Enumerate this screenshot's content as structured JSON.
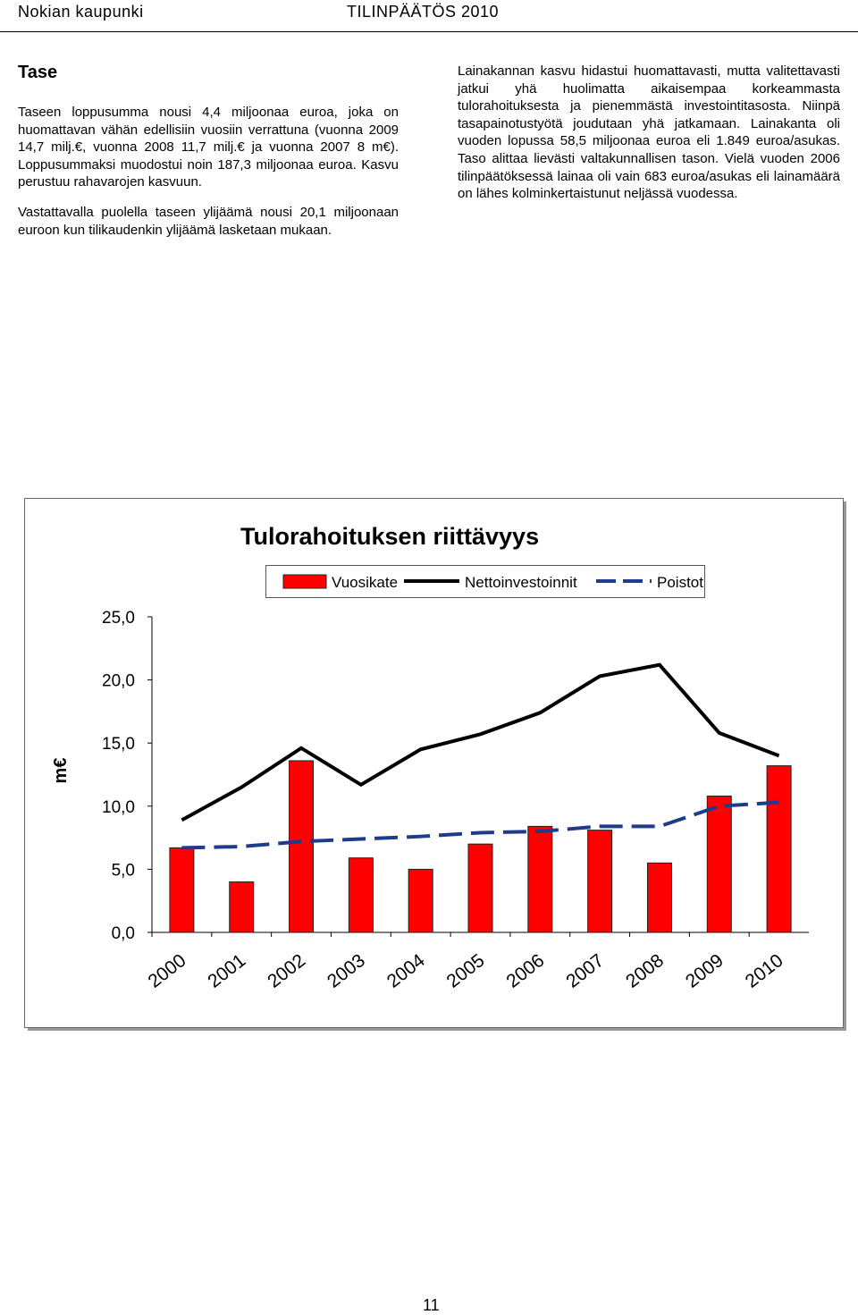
{
  "header": {
    "left": "Nokian kaupunki",
    "right": "TILINPÄÄTÖS 2010"
  },
  "heading": "Tase",
  "left_paragraphs": [
    "Taseen loppusumma nousi 4,4 miljoonaa euroa, joka on huomattavan vähän edellisiin vuosiin verrattuna (vuonna 2009 14,7 milj.€, vuonna 2008 11,7 milj.€ ja vuonna 2007 8 m€). Loppusummaksi muodostui noin 187,3 miljoonaa euroa. Kasvu perustuu rahavarojen kasvuun.",
    "Vastattavalla puolella taseen ylijäämä nousi 20,1 miljoonaan euroon kun tilikaudenkin ylijäämä lasketaan mukaan."
  ],
  "right_paragraphs": [
    "Lainakannan kasvu hidastui huomattavasti, mutta valitettavasti jatkui yhä huolimatta aikaisempaa korkeammasta tulorahoituksesta ja pienemmästä investointitasosta. Niinpä tasapainotustyötä joudutaan yhä jatkamaan. Lainakanta oli vuoden lopussa 58,5 miljoonaa euroa eli 1.849 euroa/asukas. Taso alittaa lievästi valtakunnallisen tason. Vielä vuoden 2006 tilinpäätöksessä lainaa oli vain 683 euroa/asukas eli lainamäärä on lähes kolminkertaistunut neljässä vuodessa."
  ],
  "chart_data": {
    "type": "bar",
    "title": "Tulorahoituksen riittävyys",
    "y_label": "m€",
    "categories": [
      "2000",
      "2001",
      "2002",
      "2003",
      "2004",
      "2005",
      "2006",
      "2007",
      "2008",
      "2009",
      "2010"
    ],
    "series": [
      {
        "name": "Vuosikate",
        "type": "bar",
        "color": "#ff0000",
        "values": [
          6.7,
          4.0,
          13.6,
          5.9,
          5.0,
          7.0,
          8.4,
          8.1,
          5.5,
          10.8,
          13.2
        ]
      },
      {
        "name": "Nettoinvestoinnit",
        "type": "line",
        "color": "#000000",
        "values": [
          8.9,
          11.5,
          14.6,
          11.7,
          14.5,
          15.7,
          17.4,
          20.3,
          21.2,
          15.8,
          14.0
        ]
      },
      {
        "name": "Poistot",
        "type": "line",
        "dashed": true,
        "color": "#1f3b8c",
        "values": [
          6.7,
          6.8,
          7.2,
          7.4,
          7.6,
          7.9,
          8.0,
          8.4,
          8.4,
          10.0,
          10.3
        ]
      }
    ],
    "ylim": [
      0,
      25
    ],
    "yticks": [
      {
        "value": 0,
        "label": "0,0"
      },
      {
        "value": 5,
        "label": "5,0"
      },
      {
        "value": 10,
        "label": "10,0"
      },
      {
        "value": 15,
        "label": "15,0"
      },
      {
        "value": 20,
        "label": "20,0"
      },
      {
        "value": 25,
        "label": "25,0"
      }
    ],
    "grid": false
  },
  "page_number": "11"
}
